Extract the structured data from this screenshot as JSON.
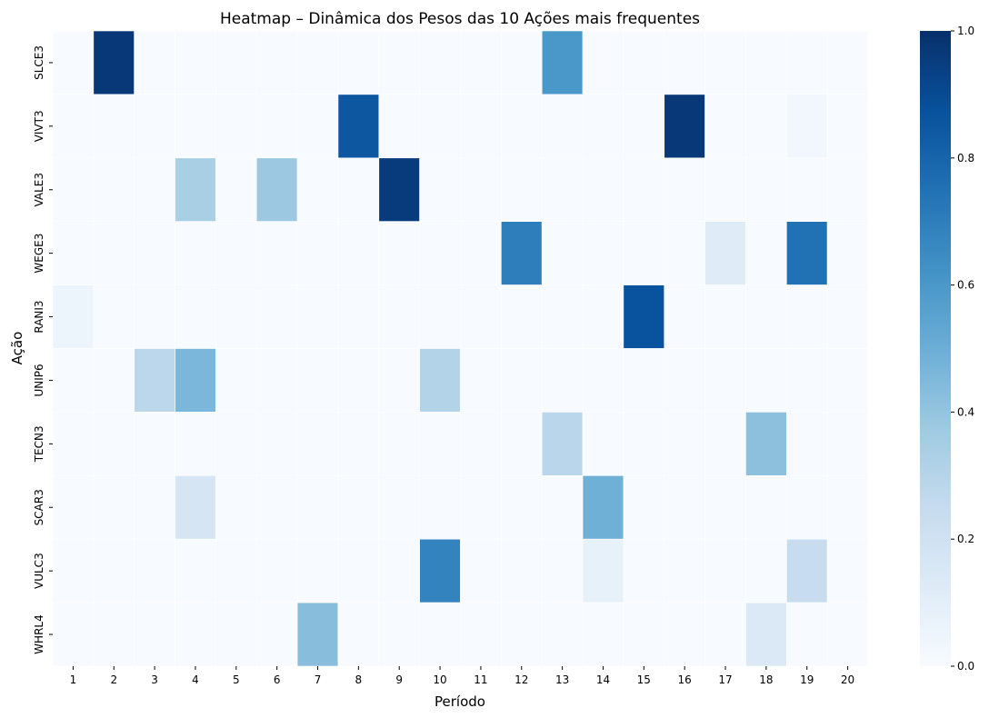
{
  "chart_data": {
    "type": "heatmap",
    "title": "Heatmap – Dinâmica dos Pesos das 10 Ações mais frequentes",
    "xlabel": "Período",
    "ylabel": "Ação",
    "colormap": "Blues",
    "colorbar": {
      "range": [
        0.0,
        1.0
      ],
      "ticks": [
        "0.0",
        "0.2",
        "0.4",
        "0.6",
        "0.8",
        "1.0"
      ]
    },
    "x_categories": [
      "1",
      "2",
      "3",
      "4",
      "5",
      "6",
      "7",
      "8",
      "9",
      "10",
      "11",
      "12",
      "13",
      "14",
      "15",
      "16",
      "17",
      "18",
      "19",
      "20"
    ],
    "y_categories": [
      "SLCE3",
      "VIVT3",
      "VALE3",
      "WEGE3",
      "RANI3",
      "UNIP6",
      "TECN3",
      "SCAR3",
      "VULC3",
      "WHRL4"
    ],
    "values": [
      [
        0,
        0.97,
        0,
        0,
        0,
        0,
        0,
        0,
        0,
        0,
        0,
        0,
        0.6,
        0,
        0,
        0,
        0,
        0,
        0,
        0
      ],
      [
        0,
        0,
        0,
        0,
        0,
        0,
        0,
        0.85,
        0,
        0,
        0,
        0,
        0,
        0,
        0,
        0.97,
        0,
        0,
        0.03,
        0
      ],
      [
        0,
        0,
        0,
        0.34,
        0,
        0.38,
        0,
        0,
        0.96,
        0,
        0,
        0,
        0,
        0,
        0,
        0,
        0,
        0,
        0,
        0
      ],
      [
        0,
        0,
        0,
        0,
        0,
        0,
        0,
        0,
        0,
        0,
        0,
        0.7,
        0,
        0,
        0,
        0,
        0.12,
        0,
        0.75,
        0
      ],
      [
        0.05,
        0,
        0,
        0,
        0,
        0,
        0,
        0,
        0,
        0,
        0,
        0,
        0,
        0,
        0.87,
        0,
        0,
        0,
        0,
        0
      ],
      [
        0,
        0,
        0.28,
        0.46,
        0,
        0,
        0,
        0,
        0,
        0.31,
        0,
        0,
        0,
        0,
        0,
        0,
        0,
        0,
        0,
        0
      ],
      [
        0,
        0,
        0,
        0,
        0,
        0,
        0,
        0,
        0,
        0,
        0,
        0,
        0.29,
        0,
        0,
        0,
        0,
        0.42,
        0,
        0
      ],
      [
        0,
        0,
        0,
        0.17,
        0,
        0,
        0,
        0,
        0,
        0,
        0,
        0,
        0,
        0.49,
        0,
        0,
        0,
        0,
        0,
        0
      ],
      [
        0,
        0,
        0,
        0,
        0,
        0,
        0,
        0,
        0,
        0.68,
        0,
        0,
        0,
        0.08,
        0,
        0,
        0,
        0,
        0.24,
        0
      ],
      [
        0,
        0,
        0,
        0,
        0,
        0,
        0.43,
        0,
        0,
        0,
        0,
        0,
        0,
        0,
        0,
        0,
        0,
        0.14,
        0,
        0
      ]
    ]
  }
}
